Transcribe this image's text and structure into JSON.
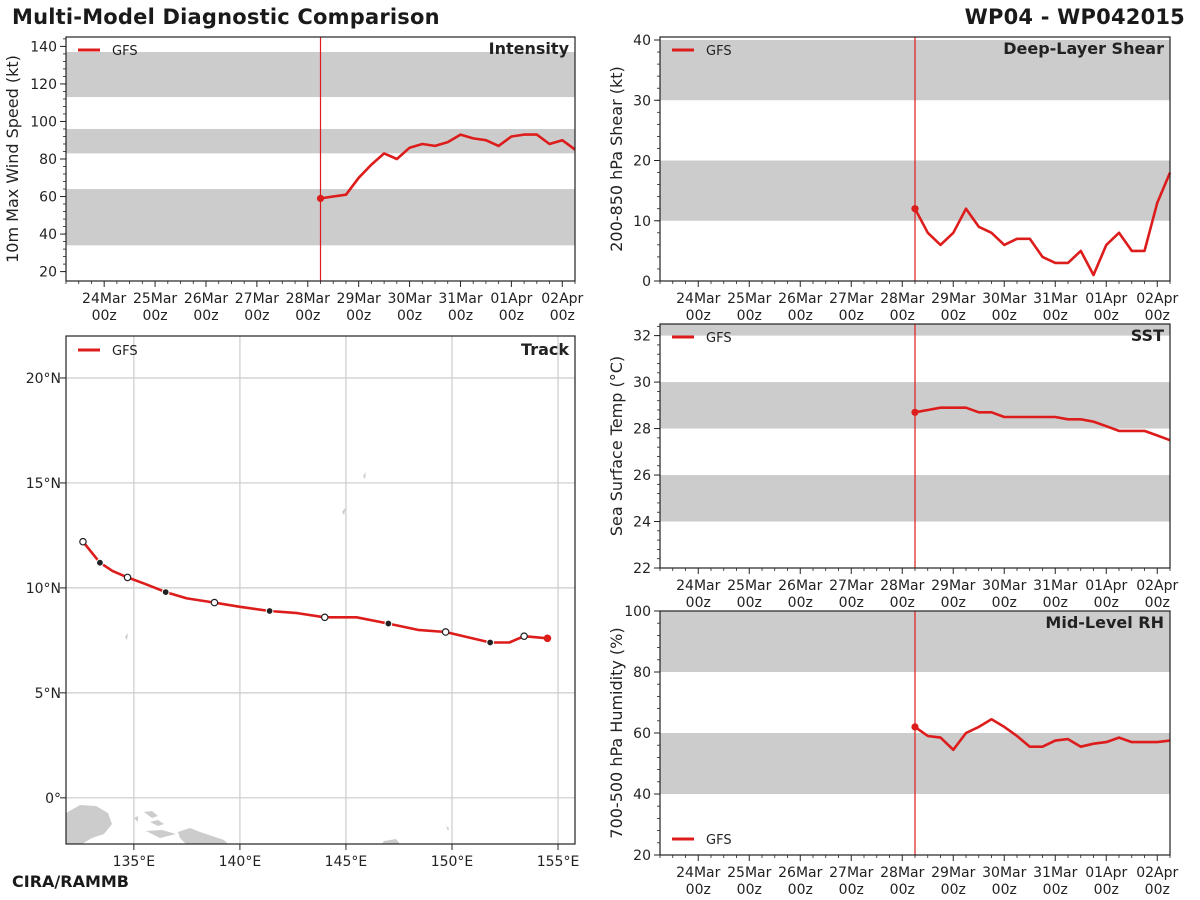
{
  "header": {
    "title": "Multi-Model Diagnostic Comparison",
    "storm_id": "WP04 - WP042015",
    "footer": "CIRA/RAMMB"
  },
  "colors": {
    "model_line": "#dd1c1c",
    "shade_band": "#cccccc",
    "grid": "#cccccc",
    "land": "#cccccc",
    "axis": "#222222"
  },
  "time_axis": {
    "days": [
      "24Mar",
      "25Mar",
      "26Mar",
      "27Mar",
      "28Mar",
      "29Mar",
      "30Mar",
      "31Mar",
      "01Apr",
      "02Apr"
    ],
    "hour_label": "00z",
    "range_days": [
      -0.75,
      9.25
    ],
    "init_time": 4.25
  },
  "chart_data": [
    {
      "id": "intensity",
      "type": "line",
      "title": "Intensity",
      "ylabel": "10m Max Wind Speed (kt)",
      "ylim": [
        15,
        145
      ],
      "yticks": [
        20,
        40,
        60,
        80,
        100,
        120,
        140
      ],
      "bands": [
        [
          34,
          64
        ],
        [
          83,
          96
        ],
        [
          113,
          137
        ]
      ],
      "legend": "GFS",
      "series": [
        {
          "name": "GFS",
          "x": [
            4.25,
            4.5,
            4.75,
            5.0,
            5.25,
            5.5,
            5.75,
            6.0,
            6.25,
            6.5,
            6.75,
            7.0,
            7.25,
            7.5,
            7.75,
            8.0,
            8.25,
            8.5,
            8.75,
            9.0,
            9.25
          ],
          "y": [
            59,
            60,
            61,
            70,
            77,
            83,
            80,
            86,
            88,
            87,
            89,
            93,
            91,
            90,
            87,
            92,
            93,
            93,
            88,
            90,
            85
          ]
        }
      ]
    },
    {
      "id": "shear",
      "type": "line",
      "title": "Deep-Layer Shear",
      "ylabel": "200-850 hPa Shear (kt)",
      "ylim": [
        0,
        40.5
      ],
      "yticks": [
        0,
        10,
        20,
        30,
        40
      ],
      "bands": [
        [
          10,
          20
        ],
        [
          30,
          40
        ]
      ],
      "legend": "GFS",
      "series": [
        {
          "name": "GFS",
          "x": [
            4.25,
            4.5,
            4.75,
            5.0,
            5.25,
            5.5,
            5.75,
            6.0,
            6.25,
            6.5,
            6.75,
            7.0,
            7.25,
            7.5,
            7.75,
            8.0,
            8.25,
            8.5,
            8.75,
            9.0,
            9.25
          ],
          "y": [
            12,
            8,
            6,
            8,
            12,
            9,
            8,
            6,
            7,
            7,
            4,
            3,
            3,
            5,
            1,
            6,
            8,
            5,
            5,
            13,
            18
          ]
        }
      ]
    },
    {
      "id": "sst",
      "type": "line",
      "title": "SST",
      "ylabel": "Sea Surface Temp (°C)",
      "ylim": [
        22,
        32.5
      ],
      "yticks": [
        22,
        24,
        26,
        28,
        30,
        32
      ],
      "bands": [
        [
          24,
          26
        ],
        [
          28,
          30
        ],
        [
          32,
          32.5
        ]
      ],
      "legend": "GFS",
      "series": [
        {
          "name": "GFS",
          "x": [
            4.25,
            4.5,
            4.75,
            5.0,
            5.25,
            5.5,
            5.75,
            6.0,
            6.25,
            6.5,
            6.75,
            7.0,
            7.25,
            7.5,
            7.75,
            8.0,
            8.25,
            8.5,
            8.75,
            9.0,
            9.25
          ],
          "y": [
            28.7,
            28.8,
            28.9,
            28.9,
            28.9,
            28.7,
            28.7,
            28.5,
            28.5,
            28.5,
            28.5,
            28.5,
            28.4,
            28.4,
            28.3,
            28.1,
            27.9,
            27.9,
            27.9,
            27.7,
            27.5
          ]
        }
      ]
    },
    {
      "id": "rh",
      "type": "line",
      "title": "Mid-Level RH",
      "ylabel": "700-500 hPa Humidity (%)",
      "ylim": [
        20,
        100
      ],
      "yticks": [
        20,
        40,
        60,
        80,
        100
      ],
      "bands": [
        [
          40,
          60
        ],
        [
          80,
          100
        ]
      ],
      "legend": "GFS",
      "series": [
        {
          "name": "GFS",
          "x": [
            4.25,
            4.5,
            4.75,
            5.0,
            5.25,
            5.5,
            5.75,
            6.0,
            6.25,
            6.5,
            6.75,
            7.0,
            7.25,
            7.5,
            7.75,
            8.0,
            8.25,
            8.5,
            8.75,
            9.0,
            9.25
          ],
          "y": [
            62,
            59,
            58.5,
            54.5,
            60,
            62,
            64.5,
            62,
            59,
            55.5,
            55.5,
            57.5,
            58,
            55.5,
            56.5,
            57,
            58.5,
            57,
            57,
            57,
            57.5
          ]
        }
      ]
    },
    {
      "id": "track",
      "type": "line",
      "title": "Track",
      "legend": "GFS",
      "xlim": [
        131.8,
        155.8
      ],
      "ylim": [
        -2.2,
        22
      ],
      "xticks": [
        135,
        140,
        145,
        150,
        155
      ],
      "xticklabels": [
        "135°E",
        "140°E",
        "145°E",
        "150°E",
        "155°E"
      ],
      "yticks": [
        0,
        5,
        10,
        15,
        20
      ],
      "yticklabels": [
        "0°",
        "5°N",
        "10°N",
        "15°N",
        "20°N"
      ],
      "series": [
        {
          "name": "GFS",
          "lon": [
            154.5,
            153.4,
            152.7,
            151.8,
            149.7,
            148.4,
            147.0,
            145.5,
            144.0,
            142.7,
            141.4,
            140.0,
            138.8,
            137.5,
            136.5,
            135.5,
            134.7,
            134.0,
            133.4,
            132.6
          ],
          "lat": [
            7.6,
            7.7,
            7.4,
            7.4,
            7.9,
            8.0,
            8.3,
            8.6,
            8.6,
            8.8,
            8.9,
            9.1,
            9.3,
            9.5,
            9.8,
            10.2,
            10.5,
            10.8,
            11.2,
            12.2
          ]
        }
      ],
      "markers": {
        "current": [
          154.5,
          7.6
        ],
        "filled": [
          [
            151.8,
            7.4
          ],
          [
            147.0,
            8.3
          ],
          [
            141.4,
            8.9
          ],
          [
            136.5,
            9.8
          ],
          [
            133.4,
            11.2
          ]
        ],
        "open": [
          [
            153.4,
            7.7
          ],
          [
            149.7,
            7.9
          ],
          [
            144.0,
            8.6
          ],
          [
            138.8,
            9.3
          ],
          [
            134.7,
            10.5
          ],
          [
            132.6,
            12.2
          ]
        ]
      }
    }
  ]
}
